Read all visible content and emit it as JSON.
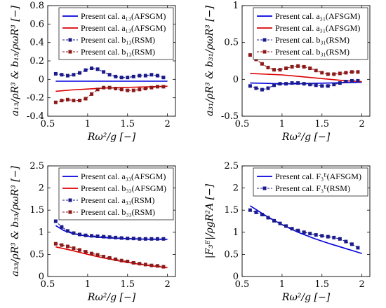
{
  "chart_data": [
    {
      "type": "line",
      "xlabel": "Rω²/g [−]",
      "ylabel": "a₁₃/ρR³ & b₁₃/ρωR³ [−]",
      "xlim": [
        0.5,
        2.1
      ],
      "ylim": [
        -0.4,
        0.8
      ],
      "xticks": [
        0.5,
        1,
        1.5,
        2
      ],
      "yticks": [
        -0.4,
        -0.2,
        0,
        0.2,
        0.4,
        0.6,
        0.8
      ],
      "yticklabels": [
        "-0.4",
        "-0.2",
        "0",
        "0.2",
        "0.4",
        "0.6",
        "0.8"
      ],
      "legend_position": "top-right",
      "series": [
        {
          "name": "Present cal. a₁₃(AFSGM)",
          "color": "#0000dd",
          "style": "line",
          "x": [
            0.6,
            0.8,
            1.0,
            1.2,
            1.4,
            1.6,
            1.8,
            2.0
          ],
          "y": [
            -0.02,
            -0.02,
            -0.02,
            -0.02,
            -0.02,
            -0.02,
            -0.02,
            -0.02
          ]
        },
        {
          "name": "Present cal. a₁₃(AFSGM)",
          "color": "#dd0000",
          "style": "line",
          "x": [
            0.6,
            0.8,
            1.0,
            1.2,
            1.4,
            1.6,
            1.8,
            2.0
          ],
          "y": [
            -0.13,
            -0.115,
            -0.105,
            -0.095,
            -0.09,
            -0.085,
            -0.08,
            -0.075
          ]
        },
        {
          "name": "Present cal. b₁₃(RSM)",
          "color": "#1a1a8c",
          "style": "marker-line",
          "x": [
            0.6,
            0.675,
            0.75,
            0.825,
            0.9,
            0.975,
            1.05,
            1.125,
            1.2,
            1.275,
            1.35,
            1.425,
            1.5,
            1.575,
            1.65,
            1.725,
            1.8,
            1.875,
            1.95
          ],
          "y": [
            0.06,
            0.05,
            0.04,
            0.05,
            0.07,
            0.1,
            0.12,
            0.11,
            0.08,
            0.05,
            0.03,
            0.02,
            0.02,
            0.03,
            0.04,
            0.04,
            0.05,
            0.04,
            0.02
          ]
        },
        {
          "name": "Present cal. b₁₃(RSM)",
          "color": "#8c1a1a",
          "style": "marker-line",
          "x": [
            0.6,
            0.675,
            0.75,
            0.825,
            0.9,
            0.975,
            1.05,
            1.125,
            1.2,
            1.275,
            1.35,
            1.425,
            1.5,
            1.575,
            1.65,
            1.725,
            1.8,
            1.875,
            1.95
          ],
          "y": [
            -0.25,
            -0.23,
            -0.22,
            -0.23,
            -0.23,
            -0.21,
            -0.16,
            -0.11,
            -0.09,
            -0.09,
            -0.1,
            -0.11,
            -0.12,
            -0.12,
            -0.11,
            -0.1,
            -0.09,
            -0.08,
            -0.08
          ]
        }
      ]
    },
    {
      "type": "line",
      "xlabel": "Rω²/g [−]",
      "ylabel": "a₃₁/ρR³ & b₃₁/ρωR³ [−]",
      "xlim": [
        0.5,
        2.1
      ],
      "ylim": [
        -0.5,
        1.0
      ],
      "xticks": [
        0.5,
        1,
        1.5,
        2
      ],
      "yticks": [
        -0.5,
        0,
        0.5,
        1
      ],
      "yticklabels": [
        "-0.5",
        "0",
        "0.5",
        "1"
      ],
      "legend_position": "top-right",
      "series": [
        {
          "name": "Present cal. a₃₁(AFSGM)",
          "color": "#0000dd",
          "style": "line",
          "x": [
            0.6,
            0.8,
            1.0,
            1.2,
            1.4,
            1.6,
            1.8,
            2.0
          ],
          "y": [
            -0.05,
            -0.055,
            -0.06,
            -0.06,
            -0.055,
            -0.05,
            -0.045,
            -0.04
          ]
        },
        {
          "name": "Present cal. a₃₁(AFSGM)",
          "color": "#dd0000",
          "style": "line",
          "x": [
            0.6,
            0.8,
            1.0,
            1.2,
            1.4,
            1.6,
            1.8,
            2.0
          ],
          "y": [
            0.08,
            0.07,
            0.06,
            0.04,
            0.02,
            0.0,
            -0.02,
            -0.03
          ]
        },
        {
          "name": "Present cal. b₃₁(RSM)",
          "color": "#1a1a8c",
          "style": "marker-line",
          "x": [
            0.6,
            0.675,
            0.75,
            0.825,
            0.9,
            0.975,
            1.05,
            1.125,
            1.2,
            1.275,
            1.35,
            1.425,
            1.5,
            1.575,
            1.65,
            1.725,
            1.8,
            1.875,
            1.95
          ],
          "y": [
            -0.09,
            -0.12,
            -0.14,
            -0.12,
            -0.08,
            -0.06,
            -0.06,
            -0.05,
            -0.05,
            -0.06,
            -0.07,
            -0.08,
            -0.09,
            -0.09,
            -0.07,
            -0.05,
            -0.03,
            -0.02,
            -0.02
          ]
        },
        {
          "name": "Present cal. b₃₁(RSM)",
          "color": "#8c1a1a",
          "style": "marker-line",
          "x": [
            0.6,
            0.675,
            0.75,
            0.825,
            0.9,
            0.975,
            1.05,
            1.125,
            1.2,
            1.275,
            1.35,
            1.425,
            1.5,
            1.575,
            1.65,
            1.725,
            1.8,
            1.875,
            1.95
          ],
          "y": [
            0.33,
            0.27,
            0.21,
            0.16,
            0.13,
            0.13,
            0.15,
            0.17,
            0.18,
            0.17,
            0.15,
            0.12,
            0.09,
            0.07,
            0.07,
            0.08,
            0.09,
            0.1,
            0.1
          ]
        }
      ]
    },
    {
      "type": "line",
      "xlabel": "Rω²/g [−]",
      "ylabel": "a₃₃/ρR³ & b₃₃/ρωR³ [−]",
      "xlim": [
        0.5,
        2.1
      ],
      "ylim": [
        0,
        2.5
      ],
      "xticks": [
        0.5,
        1,
        1.5,
        2
      ],
      "yticks": [
        0,
        0.5,
        1,
        1.5,
        2,
        2.5
      ],
      "yticklabels": [
        "0",
        "0.5",
        "1",
        "1.5",
        "2",
        "2.5"
      ],
      "legend_position": "top-right",
      "series": [
        {
          "name": "Present cal. a₃₃(AFSGM)",
          "color": "#0000dd",
          "style": "line",
          "x": [
            0.6,
            0.7,
            0.8,
            0.9,
            1.0,
            1.2,
            1.4,
            1.6,
            1.8,
            2.0
          ],
          "y": [
            1.15,
            1.04,
            0.98,
            0.94,
            0.91,
            0.88,
            0.86,
            0.85,
            0.84,
            0.84
          ]
        },
        {
          "name": "Present cal. b₃₃(AFSGM)",
          "color": "#dd0000",
          "style": "line",
          "x": [
            0.6,
            0.8,
            1.0,
            1.2,
            1.4,
            1.6,
            1.8,
            2.0
          ],
          "y": [
            0.67,
            0.59,
            0.5,
            0.42,
            0.35,
            0.29,
            0.24,
            0.2
          ]
        },
        {
          "name": "Present cal. a₃₃(RSM)",
          "color": "#1a1a8c",
          "style": "marker-line",
          "x": [
            0.6,
            0.675,
            0.75,
            0.825,
            0.9,
            0.975,
            1.05,
            1.125,
            1.2,
            1.275,
            1.35,
            1.425,
            1.5,
            1.575,
            1.65,
            1.725,
            1.8,
            1.875,
            1.95
          ],
          "y": [
            1.25,
            1.12,
            1.03,
            0.98,
            0.95,
            0.93,
            0.92,
            0.91,
            0.9,
            0.89,
            0.88,
            0.87,
            0.86,
            0.86,
            0.85,
            0.85,
            0.85,
            0.85,
            0.85
          ]
        },
        {
          "name": "Present cal. b₃₃(RSM)",
          "color": "#8c1a1a",
          "style": "marker-line",
          "x": [
            0.6,
            0.675,
            0.75,
            0.825,
            0.9,
            0.975,
            1.05,
            1.125,
            1.2,
            1.275,
            1.35,
            1.425,
            1.5,
            1.575,
            1.65,
            1.725,
            1.8,
            1.875,
            1.95
          ],
          "y": [
            0.74,
            0.71,
            0.68,
            0.64,
            0.6,
            0.56,
            0.52,
            0.49,
            0.45,
            0.42,
            0.39,
            0.36,
            0.34,
            0.31,
            0.29,
            0.27,
            0.25,
            0.24,
            0.22
          ]
        }
      ]
    },
    {
      "type": "line",
      "xlabel": "Rω²/g [−]",
      "ylabel": "|F₃ᴱ|/ρgR²A [−]",
      "xlim": [
        0.5,
        2.1
      ],
      "ylim": [
        0,
        2.5
      ],
      "xticks": [
        0.5,
        1,
        1.5,
        2
      ],
      "yticks": [
        0,
        0.5,
        1,
        1.5,
        2,
        2.5
      ],
      "yticklabels": [
        "0",
        "0.5",
        "1",
        "1.5",
        "2",
        "2.5"
      ],
      "legend_position": "top-right",
      "series": [
        {
          "name": "Present cal. F₃ᴱ(AFSGM)",
          "color": "#0000dd",
          "style": "line",
          "x": [
            0.6,
            0.8,
            1.0,
            1.2,
            1.4,
            1.6,
            1.8,
            2.0
          ],
          "y": [
            1.6,
            1.37,
            1.17,
            1.0,
            0.86,
            0.74,
            0.63,
            0.52
          ]
        },
        {
          "name": "Present cal. F₃ᴱ(RSM)",
          "color": "#1a1a8c",
          "style": "marker-line",
          "x": [
            0.6,
            0.675,
            0.75,
            0.825,
            0.9,
            0.975,
            1.05,
            1.125,
            1.2,
            1.275,
            1.35,
            1.425,
            1.5,
            1.575,
            1.65,
            1.725,
            1.8,
            1.875,
            1.95
          ],
          "y": [
            1.5,
            1.45,
            1.4,
            1.33,
            1.26,
            1.2,
            1.14,
            1.08,
            1.04,
            1.0,
            0.97,
            0.94,
            0.92,
            0.9,
            0.88,
            0.85,
            0.79,
            0.73,
            0.65
          ]
        }
      ]
    }
  ]
}
